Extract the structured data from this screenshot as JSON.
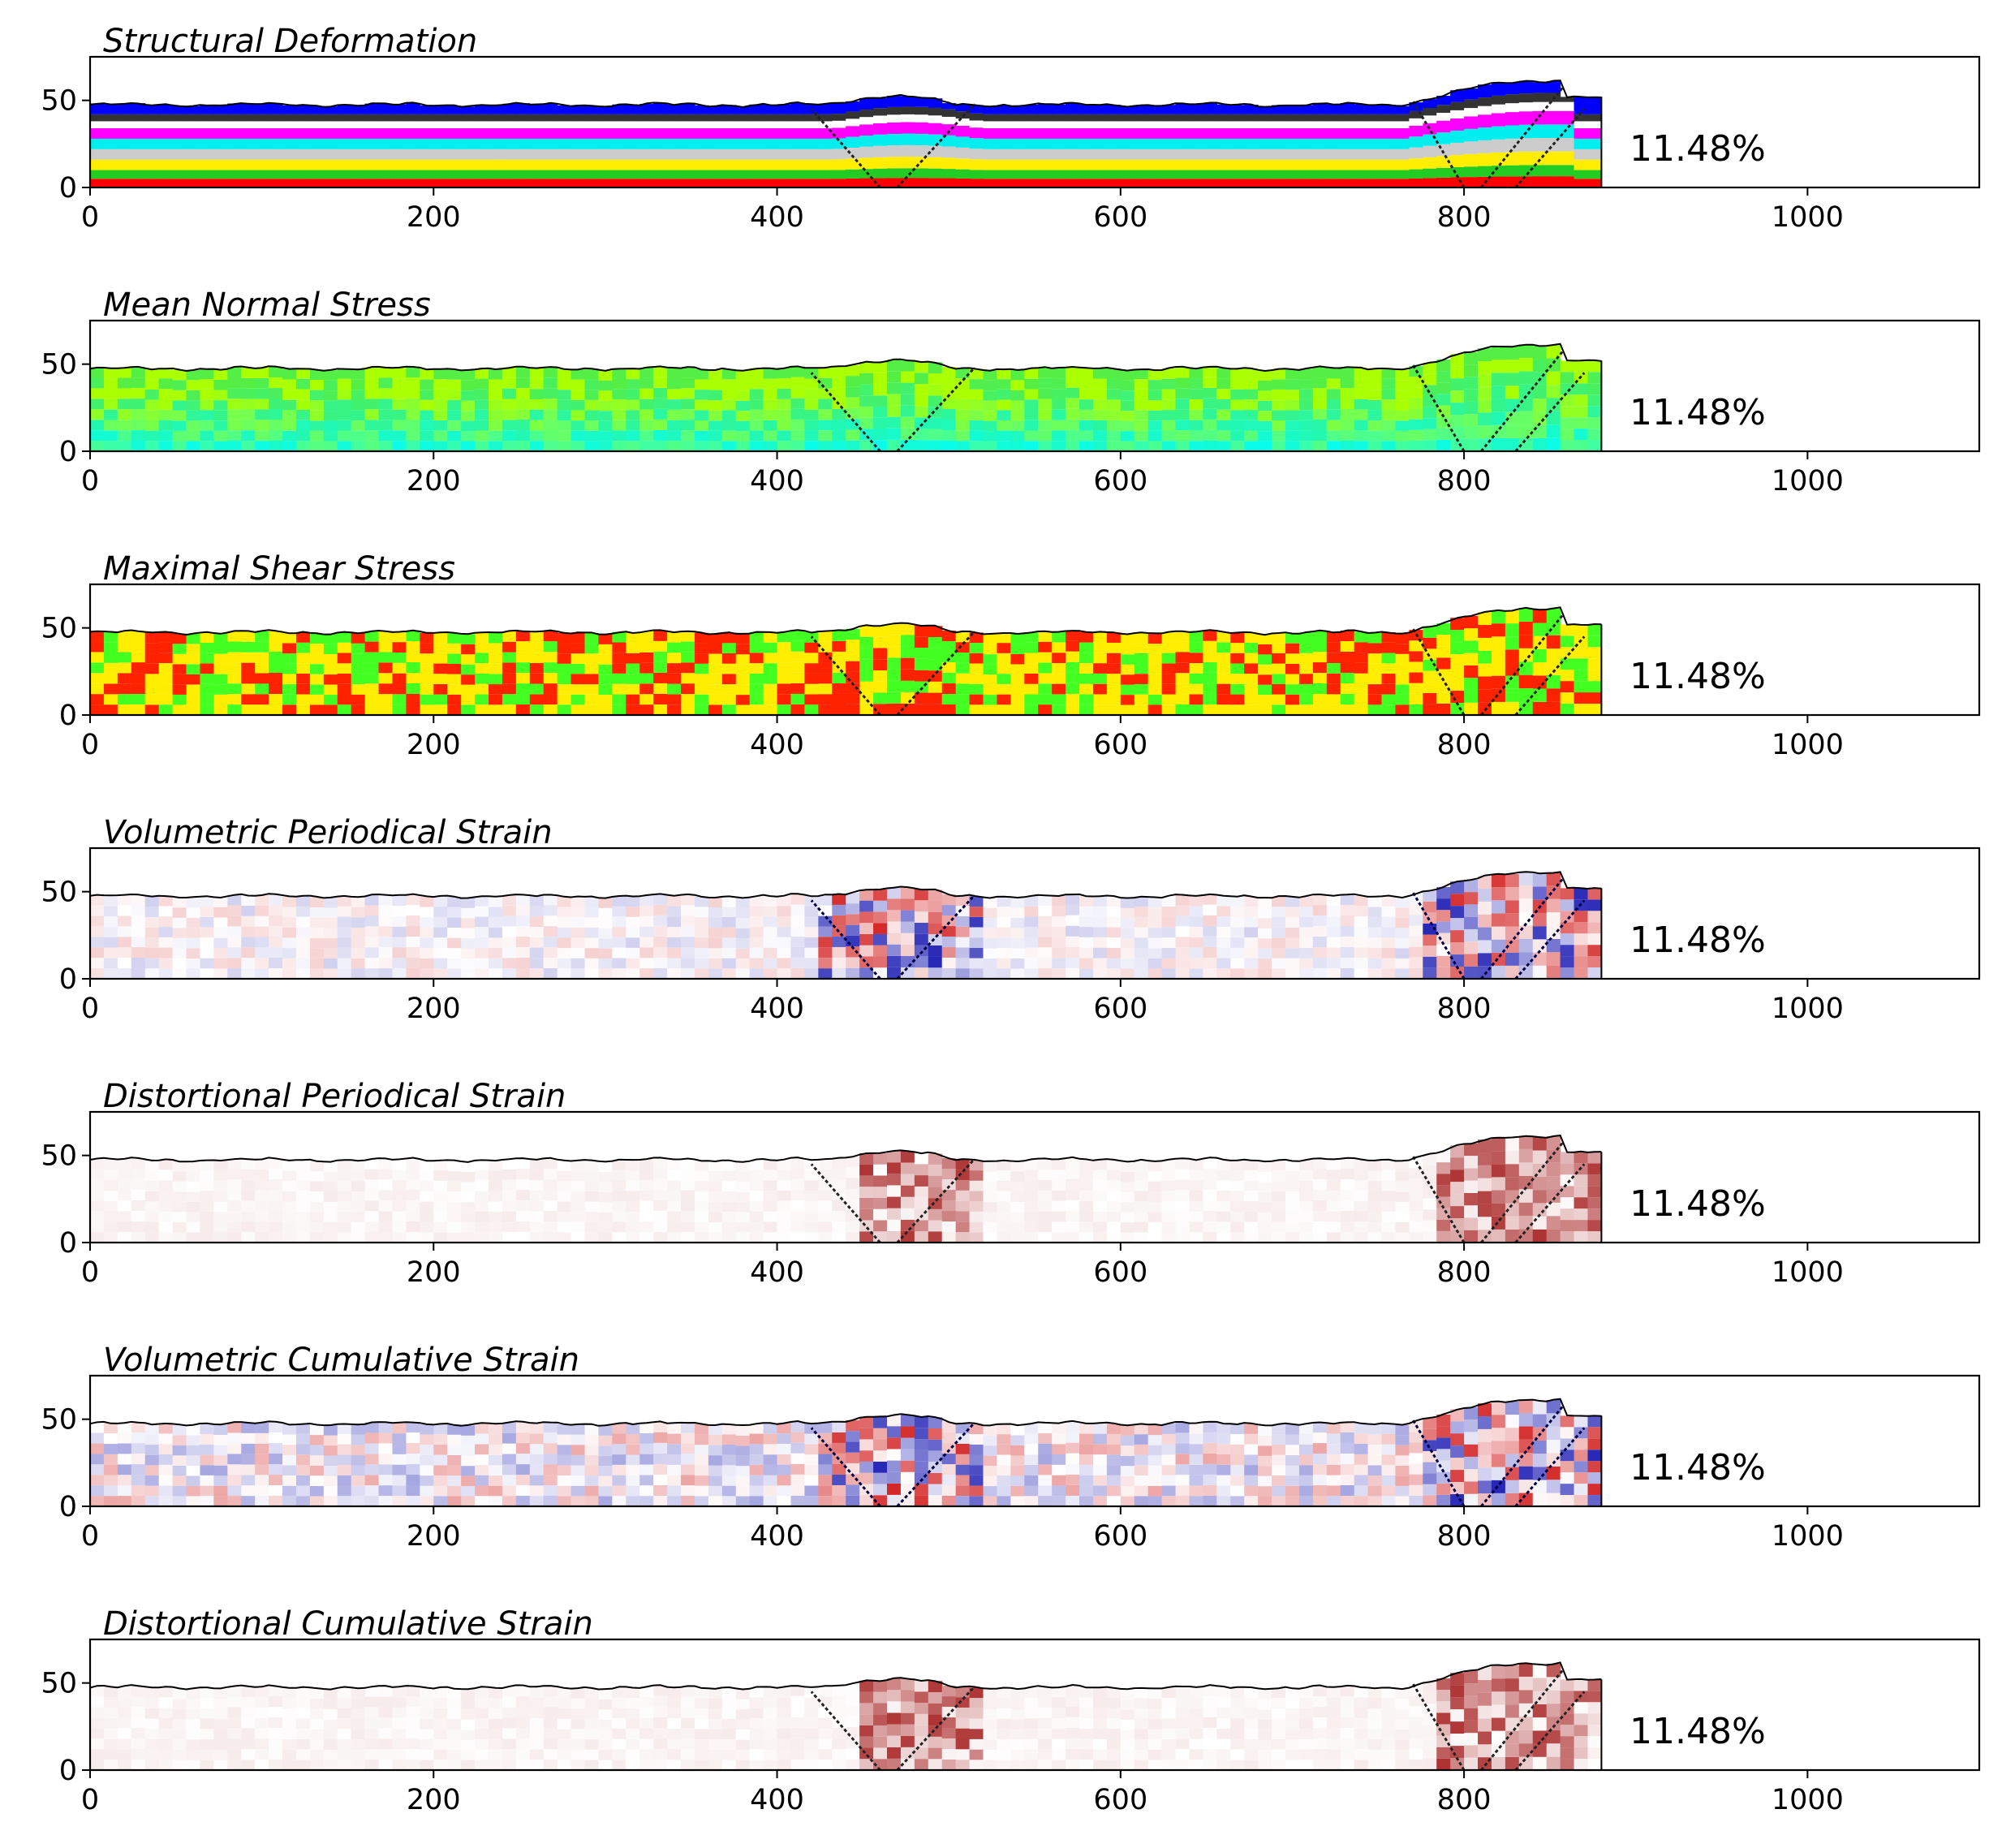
{
  "chart_data": [
    {
      "type": "heatmap",
      "title": "Structural Deformation",
      "annotation": "11.48%",
      "xlim": [
        0,
        1100
      ],
      "ylim": [
        0,
        75
      ],
      "xticks": [
        "0",
        "200",
        "400",
        "600",
        "800",
        "1000"
      ],
      "yticks": [
        "0",
        "50"
      ],
      "colors": {
        "layers": [
          "#ff0000",
          "#22cc22",
          "#ffee00",
          "#cccccc",
          "#00eeee",
          "#ff00ff",
          "#ffffff",
          "#333333",
          "#0000ff"
        ]
      }
    },
    {
      "type": "heatmap",
      "title": "Mean Normal Stress",
      "annotation": "11.48%",
      "xlim": [
        0,
        1100
      ],
      "ylim": [
        0,
        75
      ],
      "xticks": [
        "0",
        "200",
        "400",
        "600",
        "800",
        "1000"
      ],
      "yticks": [
        "0",
        "50"
      ],
      "colors": {
        "low": "#00ffff",
        "mid": "#55ee44",
        "high": "#aaff00"
      }
    },
    {
      "type": "heatmap",
      "title": "Maximal Shear Stress",
      "annotation": "11.48%",
      "xlim": [
        0,
        1100
      ],
      "ylim": [
        0,
        75
      ],
      "xticks": [
        "0",
        "200",
        "400",
        "600",
        "800",
        "1000"
      ],
      "yticks": [
        "0",
        "50"
      ],
      "colors": {
        "low": "#44ff22",
        "mid": "#ffee00",
        "high": "#ff2200"
      }
    },
    {
      "type": "heatmap",
      "title": "Volumetric Periodical Strain",
      "annotation": "11.48%",
      "xlim": [
        0,
        1100
      ],
      "ylim": [
        0,
        75
      ],
      "xticks": [
        "0",
        "200",
        "400",
        "600",
        "800",
        "1000"
      ],
      "yticks": [
        "0",
        "50"
      ],
      "colors": {
        "positive": "#cc0000",
        "negative": "#0000aa",
        "zero": "#ffffff"
      }
    },
    {
      "type": "heatmap",
      "title": "Distortional Periodical Strain",
      "annotation": "11.48%",
      "xlim": [
        0,
        1100
      ],
      "ylim": [
        0,
        75
      ],
      "xticks": [
        "0",
        "200",
        "400",
        "600",
        "800",
        "1000"
      ],
      "yticks": [
        "0",
        "50"
      ],
      "colors": {
        "high": "#990000",
        "low": "#ffffff"
      }
    },
    {
      "type": "heatmap",
      "title": "Volumetric Cumulative Strain",
      "annotation": "11.48%",
      "xlim": [
        0,
        1100
      ],
      "ylim": [
        0,
        75
      ],
      "xticks": [
        "0",
        "200",
        "400",
        "600",
        "800",
        "1000"
      ],
      "yticks": [
        "0",
        "50"
      ],
      "colors": {
        "positive": "#cc0000",
        "negative": "#0000aa",
        "zero": "#ffffff"
      }
    },
    {
      "type": "heatmap",
      "title": "Distortional Cumulative Strain",
      "annotation": "11.48%",
      "xlim": [
        0,
        1100
      ],
      "ylim": [
        0,
        75
      ],
      "xticks": [
        "0",
        "200",
        "400",
        "600",
        "800",
        "1000"
      ],
      "yticks": [
        "0",
        "50"
      ],
      "colors": {
        "high": "#990000",
        "low": "#ffffff"
      }
    }
  ]
}
